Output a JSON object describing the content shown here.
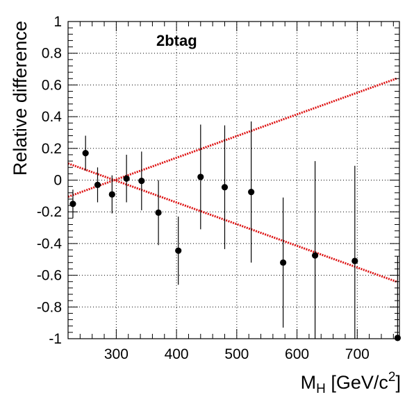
{
  "chart_data": {
    "type": "scatter",
    "annotation": "2btag",
    "xlabel": {
      "main": "M",
      "sub": "H",
      "units_open": " [GeV/c",
      "sup": "2",
      "units_close": "]"
    },
    "ylabel": "Relative difference",
    "xlim": [
      220,
      770
    ],
    "ylim": [
      -1,
      1
    ],
    "grid": true,
    "x_ticks": [
      300,
      400,
      500,
      600,
      700
    ],
    "y_ticks": [
      1,
      0.8,
      0.6,
      0.4,
      0.2,
      0,
      -0.2,
      -0.4,
      -0.6,
      -0.8,
      -1
    ],
    "x_tick_labels": [
      "300",
      "400",
      "500",
      "600",
      "700"
    ],
    "y_tick_labels": [
      "1",
      "0.8",
      "0.6",
      "0.4",
      "0.2",
      "0",
      "-0.2",
      "-0.4",
      "-0.6",
      "-0.8",
      "-1"
    ],
    "points": [
      {
        "x": 228,
        "y": -0.15,
        "err": 0.09
      },
      {
        "x": 249,
        "y": 0.17,
        "err": 0.11
      },
      {
        "x": 269,
        "y": -0.03,
        "err": 0.11
      },
      {
        "x": 293,
        "y": -0.09,
        "err": 0.12
      },
      {
        "x": 317,
        "y": 0.01,
        "err": 0.15
      },
      {
        "x": 342,
        "y": -0.005,
        "err": 0.185
      },
      {
        "x": 370,
        "y": -0.205,
        "err": 0.205
      },
      {
        "x": 403,
        "y": -0.445,
        "err": 0.215
      },
      {
        "x": 440,
        "y": 0.02,
        "err": 0.33
      },
      {
        "x": 480,
        "y": -0.045,
        "err": 0.39
      },
      {
        "x": 524,
        "y": -0.075,
        "err": 0.445
      },
      {
        "x": 577,
        "y": -0.52,
        "err": 0.41
      },
      {
        "x": 630,
        "y": -0.475,
        "err": 0.595
      },
      {
        "x": 696,
        "y": -0.51,
        "err": 0.6
      },
      {
        "x": 767,
        "y": -0.995,
        "err": 0.515
      }
    ],
    "lines": [
      {
        "color": "#dd1111",
        "x": [
          220,
          765
        ],
        "y": [
          -0.105,
          0.64
        ]
      },
      {
        "color": "#dd1111",
        "x": [
          220,
          765
        ],
        "y": [
          0.105,
          -0.64
        ]
      }
    ]
  }
}
